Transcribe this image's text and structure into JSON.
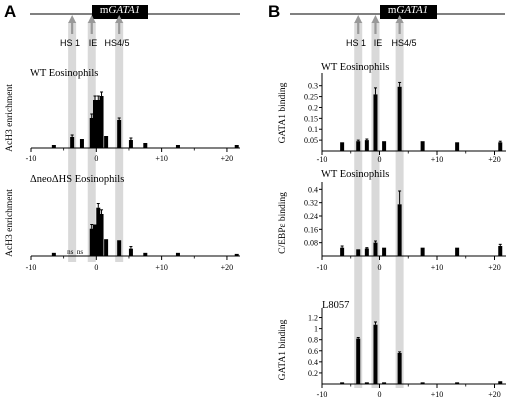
{
  "panels": [
    {
      "letter": "A",
      "gene": {
        "prefix": "m",
        "name": "GATA1"
      },
      "sites": [
        {
          "label": "HS 1",
          "x": -3.7
        },
        {
          "label": "IE",
          "x": -0.7
        },
        {
          "label": "HS4/5",
          "x": 3.5
        }
      ]
    },
    {
      "letter": "B",
      "gene": {
        "prefix": "m",
        "name": "GATA1"
      },
      "sites": [
        {
          "label": "HS 1",
          "x": -3.7
        },
        {
          "label": "IE",
          "x": -0.7
        },
        {
          "label": "HS4/5",
          "x": 3.5
        }
      ]
    }
  ],
  "colors": {
    "bars": "#000000",
    "highlight": "#d9d9d9",
    "arrow": "#999999"
  },
  "chart_data": [
    {
      "type": "bar",
      "panel": "A",
      "title": "WT Eosinophils",
      "ylabel": "AcH3 enrichment",
      "xlim": [
        -10,
        22
      ],
      "x_ticks": [
        "-10",
        "0",
        "+10",
        "+20"
      ],
      "x": [
        -6.5,
        -3.7,
        -2.2,
        -0.7,
        -0.2,
        0.3,
        0.8,
        1.5,
        3.5,
        5.3,
        7.5,
        12.5,
        21.5
      ],
      "values": [
        1.5,
        5.5,
        4.5,
        15,
        24,
        24,
        26,
        6,
        14,
        4,
        2.5,
        1.5,
        1.5
      ],
      "errors": [
        0,
        1,
        0,
        2,
        2,
        2,
        2,
        0,
        1,
        1,
        0,
        0,
        0
      ],
      "ylim": [
        0,
        30
      ],
      "y_ticks": [],
      "grid": false
    },
    {
      "type": "bar",
      "panel": "A",
      "title": "ΔneoΔHS Eosinophils",
      "ylabel": "AcH3 enrichment",
      "xlim": [
        -10,
        22
      ],
      "x_ticks": [
        "-10",
        "0",
        "+10",
        "+20"
      ],
      "x": [
        -6.5,
        -0.7,
        -0.2,
        0.3,
        0.8,
        1.5,
        3.5,
        5.3,
        7.5,
        12.5,
        21.5
      ],
      "values": [
        1.5,
        13,
        15,
        23,
        20,
        8,
        7.5,
        3.5,
        1.5,
        1.5,
        1
      ],
      "errors": [
        0,
        2,
        0,
        2,
        2,
        0,
        0,
        1,
        0,
        0,
        0
      ],
      "ylim": [
        0,
        30
      ],
      "y_ticks": [],
      "annotations": [
        {
          "text": "ns",
          "x": -4.0
        },
        {
          "text": "ns",
          "x": -2.5
        }
      ],
      "grid": false
    },
    {
      "type": "bar",
      "panel": "B",
      "title": "WT Eosinophils",
      "ylabel": "GATA1 binding",
      "xlim": [
        -10,
        22
      ],
      "x_ticks": [
        "-10",
        "0",
        "+10",
        "+20"
      ],
      "x": [
        -6.5,
        -3.7,
        -2.2,
        -0.7,
        0.8,
        3.5,
        7.5,
        13.5,
        21.0
      ],
      "values": [
        0.04,
        0.045,
        0.05,
        0.26,
        0.045,
        0.295,
        0.045,
        0.04,
        0.04
      ],
      "errors": [
        0,
        0.005,
        0.005,
        0.03,
        0,
        0.02,
        0,
        0,
        0.005
      ],
      "ylim": [
        0,
        0.34
      ],
      "y_ticks": [
        "0.05",
        "0.1",
        "0.15",
        "0.2",
        "0.25",
        "0.3"
      ],
      "y_tick_values": [
        0.05,
        0.1,
        0.15,
        0.2,
        0.25,
        0.3
      ],
      "grid": false
    },
    {
      "type": "bar",
      "panel": "B",
      "title": "WT Eosinophils",
      "ylabel": "C/EBPε binding",
      "xlim": [
        -10,
        22
      ],
      "x_ticks": [
        "-10",
        "0",
        "+10",
        "+20"
      ],
      "x": [
        -6.5,
        -3.7,
        -2.2,
        -0.7,
        0.8,
        3.5,
        7.5,
        13.5,
        21.0
      ],
      "values": [
        0.05,
        0.04,
        0.045,
        0.08,
        0.05,
        0.31,
        0.05,
        0.05,
        0.06
      ],
      "errors": [
        0.01,
        0,
        0.005,
        0.01,
        0,
        0.08,
        0,
        0,
        0.01
      ],
      "ylim": [
        0,
        0.42
      ],
      "y_ticks": [
        "0.08",
        "0.16",
        "0.24",
        "0.32",
        "0.4"
      ],
      "y_tick_values": [
        0.08,
        0.16,
        0.24,
        0.32,
        0.4
      ],
      "grid": false
    },
    {
      "type": "bar",
      "panel": "B",
      "title": "L8057",
      "ylabel": "GATA1 binding",
      "xlim": [
        -10,
        22
      ],
      "x_ticks": [
        "-10",
        "0",
        "+10",
        "+20"
      ],
      "x": [
        -6.5,
        -3.7,
        -2.2,
        -0.7,
        0.8,
        3.5,
        7.5,
        13.5,
        21.0
      ],
      "values": [
        0.03,
        0.82,
        0.03,
        1.07,
        0.03,
        0.56,
        0.03,
        0.03,
        0.05
      ],
      "errors": [
        0,
        0.02,
        0,
        0.05,
        0,
        0.02,
        0,
        0,
        0
      ],
      "ylim": [
        0,
        1.3
      ],
      "y_ticks": [
        "0.2",
        "0.4",
        "0.6",
        "0.8",
        "1",
        "1.2"
      ],
      "y_tick_values": [
        0.2,
        0.4,
        0.6,
        0.8,
        1.0,
        1.2
      ],
      "grid": false
    }
  ]
}
